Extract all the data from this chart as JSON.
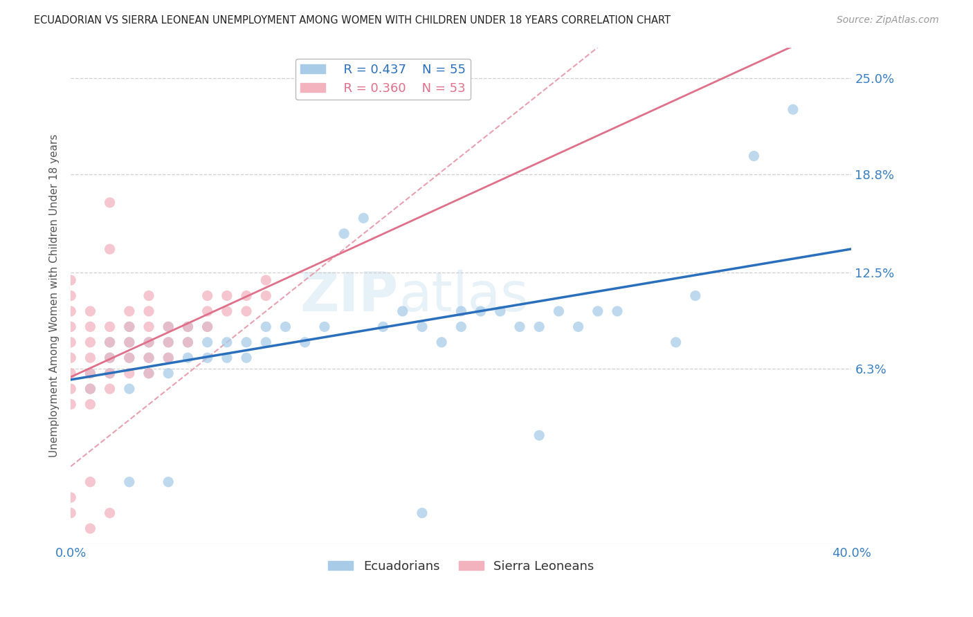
{
  "title": "ECUADORIAN VS SIERRA LEONEAN UNEMPLOYMENT AMONG WOMEN WITH CHILDREN UNDER 18 YEARS CORRELATION CHART",
  "source": "Source: ZipAtlas.com",
  "ylabel": "Unemployment Among Women with Children Under 18 years",
  "xlim": [
    0.0,
    0.4
  ],
  "ylim": [
    -0.05,
    0.27
  ],
  "xticks": [
    0.0,
    0.05,
    0.1,
    0.15,
    0.2,
    0.25,
    0.3,
    0.35,
    0.4
  ],
  "ytick_labels_right": [
    "6.3%",
    "12.5%",
    "18.8%",
    "25.0%"
  ],
  "ytick_vals_right": [
    0.063,
    0.125,
    0.188,
    0.25
  ],
  "watermark": "ZIPatlas",
  "legend_blue_R": "R = 0.437",
  "legend_blue_N": "N = 55",
  "legend_pink_R": "R = 0.360",
  "legend_pink_N": "N = 53",
  "blue_color": "#a8cce8",
  "pink_color": "#f2b3bf",
  "blue_line_color": "#2a6fbb",
  "pink_line_color": "#e0708a",
  "diagonal_color": "#e8a0b0",
  "background_color": "#ffffff",
  "blue_points": [
    [
      0.01,
      0.05
    ],
    [
      0.01,
      0.06
    ],
    [
      0.02,
      0.06
    ],
    [
      0.02,
      0.07
    ],
    [
      0.02,
      0.08
    ],
    [
      0.03,
      0.05
    ],
    [
      0.03,
      0.07
    ],
    [
      0.03,
      0.08
    ],
    [
      0.03,
      0.09
    ],
    [
      0.04,
      0.06
    ],
    [
      0.04,
      0.07
    ],
    [
      0.04,
      0.08
    ],
    [
      0.05,
      0.06
    ],
    [
      0.05,
      0.07
    ],
    [
      0.05,
      0.08
    ],
    [
      0.05,
      0.09
    ],
    [
      0.06,
      0.07
    ],
    [
      0.06,
      0.08
    ],
    [
      0.06,
      0.09
    ],
    [
      0.07,
      0.07
    ],
    [
      0.07,
      0.08
    ],
    [
      0.07,
      0.09
    ],
    [
      0.08,
      0.07
    ],
    [
      0.08,
      0.08
    ],
    [
      0.09,
      0.07
    ],
    [
      0.09,
      0.08
    ],
    [
      0.1,
      0.08
    ],
    [
      0.1,
      0.09
    ],
    [
      0.11,
      0.09
    ],
    [
      0.12,
      0.08
    ],
    [
      0.13,
      0.09
    ],
    [
      0.14,
      0.15
    ],
    [
      0.15,
      0.16
    ],
    [
      0.16,
      0.09
    ],
    [
      0.17,
      0.1
    ],
    [
      0.18,
      0.09
    ],
    [
      0.19,
      0.08
    ],
    [
      0.2,
      0.09
    ],
    [
      0.2,
      0.1
    ],
    [
      0.21,
      0.1
    ],
    [
      0.22,
      0.1
    ],
    [
      0.23,
      0.09
    ],
    [
      0.24,
      0.09
    ],
    [
      0.25,
      0.1
    ],
    [
      0.26,
      0.09
    ],
    [
      0.27,
      0.1
    ],
    [
      0.28,
      0.1
    ],
    [
      0.03,
      -0.01
    ],
    [
      0.05,
      -0.01
    ],
    [
      0.18,
      -0.03
    ],
    [
      0.24,
      0.02
    ],
    [
      0.31,
      0.08
    ],
    [
      0.32,
      0.11
    ],
    [
      0.35,
      0.2
    ],
    [
      0.37,
      0.23
    ]
  ],
  "pink_points": [
    [
      0.0,
      0.04
    ],
    [
      0.0,
      0.05
    ],
    [
      0.0,
      0.06
    ],
    [
      0.0,
      0.07
    ],
    [
      0.0,
      0.08
    ],
    [
      0.0,
      0.09
    ],
    [
      0.0,
      0.1
    ],
    [
      0.0,
      0.11
    ],
    [
      0.0,
      0.12
    ],
    [
      0.01,
      0.04
    ],
    [
      0.01,
      0.05
    ],
    [
      0.01,
      0.06
    ],
    [
      0.01,
      0.07
    ],
    [
      0.01,
      0.08
    ],
    [
      0.01,
      0.09
    ],
    [
      0.01,
      0.1
    ],
    [
      0.02,
      0.05
    ],
    [
      0.02,
      0.06
    ],
    [
      0.02,
      0.07
    ],
    [
      0.02,
      0.08
    ],
    [
      0.02,
      0.09
    ],
    [
      0.02,
      0.14
    ],
    [
      0.02,
      0.17
    ],
    [
      0.03,
      0.06
    ],
    [
      0.03,
      0.07
    ],
    [
      0.03,
      0.08
    ],
    [
      0.03,
      0.09
    ],
    [
      0.03,
      0.1
    ],
    [
      0.04,
      0.06
    ],
    [
      0.04,
      0.07
    ],
    [
      0.04,
      0.08
    ],
    [
      0.04,
      0.09
    ],
    [
      0.04,
      0.1
    ],
    [
      0.04,
      0.11
    ],
    [
      0.05,
      0.07
    ],
    [
      0.05,
      0.08
    ],
    [
      0.05,
      0.09
    ],
    [
      0.06,
      0.08
    ],
    [
      0.06,
      0.09
    ],
    [
      0.07,
      0.09
    ],
    [
      0.07,
      0.1
    ],
    [
      0.07,
      0.11
    ],
    [
      0.08,
      0.1
    ],
    [
      0.08,
      0.11
    ],
    [
      0.09,
      0.1
    ],
    [
      0.09,
      0.11
    ],
    [
      0.1,
      0.11
    ],
    [
      0.1,
      0.12
    ],
    [
      0.0,
      -0.02
    ],
    [
      0.0,
      -0.03
    ],
    [
      0.01,
      -0.01
    ],
    [
      0.01,
      -0.04
    ],
    [
      0.02,
      -0.03
    ]
  ]
}
